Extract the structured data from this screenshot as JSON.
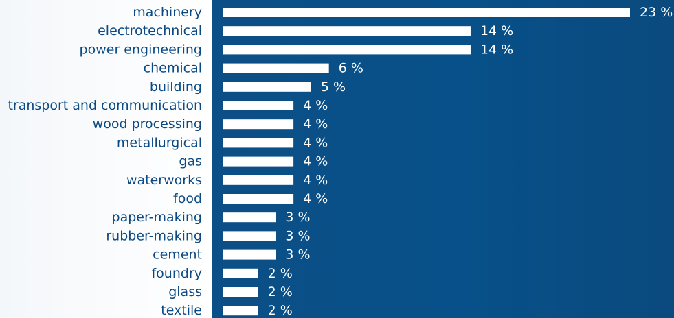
{
  "chart_data": {
    "type": "bar",
    "orientation": "horizontal",
    "categories": [
      "machinery",
      "electrotechnical",
      "power engineering",
      "chemical",
      "building",
      "transport and communication",
      "wood processing",
      "metallurgical",
      "gas",
      "waterworks",
      "food",
      "paper-making",
      "rubber-making",
      "cement",
      "foundry",
      "glass",
      "textile"
    ],
    "values": [
      23,
      14,
      14,
      6,
      5,
      4,
      4,
      4,
      4,
      4,
      4,
      3,
      3,
      3,
      2,
      2,
      2
    ],
    "value_labels": [
      "23 %",
      "14 %",
      "14 %",
      "6 %",
      "5 %",
      "4 %",
      "4 %",
      "4 %",
      "4 %",
      "4 %",
      "4 %",
      "3 %",
      "3 %",
      "3 %",
      "2 %",
      "2 %",
      "2 %"
    ],
    "title": "",
    "xlabel": "",
    "ylabel": "",
    "xlim": [
      0,
      23
    ],
    "grid": false,
    "legend": "none"
  },
  "colors": {
    "label_panel_bg": "#f4f7fa",
    "plot_panel_bg": "#0c4f86",
    "category_text": "#0b4a85",
    "bar_fill": "#ffffff",
    "value_text": "#ffffff"
  }
}
